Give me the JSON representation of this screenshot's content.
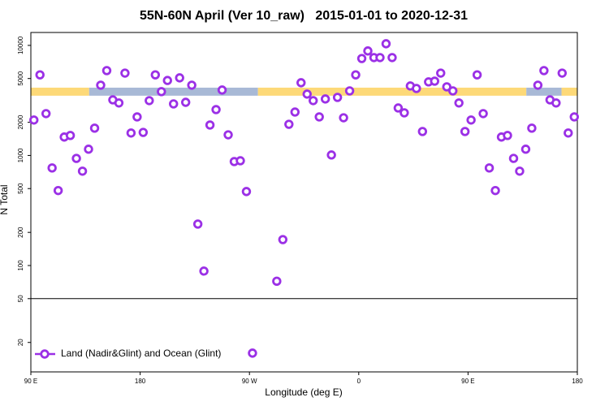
{
  "chart_data": {
    "type": "scatter",
    "title": "55N-60N April (Ver 10_raw)   2015-01-01 to 2020-12-31",
    "x_label": "Longitude (deg E)",
    "y_label": "N Total",
    "xlim": [
      90,
      540
    ],
    "xticks": [
      {
        "value": 90,
        "label": "90 E"
      },
      180,
      {
        "value": 270,
        "label": "90 W"
      },
      {
        "value": 360,
        "label": "0"
      },
      {
        "value": 450,
        "label": "90 E"
      },
      {
        "value": 540,
        "label": "180"
      }
    ],
    "ylim": [
      10.8,
      13100
    ],
    "y_log": true,
    "yticks": [
      20,
      50,
      100,
      200,
      500,
      1000,
      2000,
      5000,
      10000
    ],
    "hline": 50,
    "band_range": [
      3490,
      4130
    ],
    "band_segments": [
      {
        "from": 90,
        "to": 138,
        "color": "#fdd978"
      },
      {
        "from": 138,
        "to": 277,
        "color": "#a8b9d6"
      },
      {
        "from": 277,
        "to": 498,
        "color": "#fdd978"
      },
      {
        "from": 498,
        "to": 527,
        "color": "#a8b9d6"
      },
      {
        "from": 527,
        "to": 540,
        "color": "#fdd978"
      }
    ],
    "legend": "bottom-left",
    "series": [
      {
        "name": "Land (Nadir&Glint) and Ocean (Glint)",
        "color": "#9b30e6",
        "x": [
          92.5,
          97.5,
          102.5,
          107.5,
          112.5,
          117.5,
          122.5,
          127.5,
          132.5,
          137.5,
          142.5,
          147.5,
          152.5,
          157.5,
          162.5,
          167.5,
          172.5,
          177.5,
          182.5,
          187.5,
          192.5,
          197.5,
          202.5,
          207.5,
          212.5,
          217.5,
          222.5,
          227.5,
          232.5,
          237.5,
          242.5,
          247.5,
          252.5,
          257.5,
          262.5,
          267.5,
          272.5,
          292.5,
          297.5,
          302.5,
          307.5,
          312.5,
          317.5,
          322.5,
          327.5,
          332.5,
          337.5,
          342.5,
          347.5,
          352.5,
          357.5,
          362.5,
          367.5,
          372.5,
          377.5,
          382.5,
          387.5,
          392.5,
          397.5,
          402.5,
          407.5,
          412.5,
          417.5,
          422.5,
          427.5,
          432.5,
          437.5,
          442.5,
          447.5,
          452.5,
          457.5,
          462.5,
          467.5,
          472.5,
          477.5,
          482.5,
          487.5,
          492.5,
          497.5,
          502.5,
          507.5,
          512.5,
          517.5,
          522.5,
          527.5,
          532.5,
          537.5
        ],
        "values": [
          2100,
          5400,
          2400,
          770,
          480,
          1470,
          1520,
          940,
          720,
          1140,
          1770,
          4350,
          5900,
          3200,
          3000,
          5600,
          1600,
          2240,
          1620,
          3150,
          5400,
          3800,
          4800,
          2940,
          5070,
          3040,
          4350,
          238,
          89,
          1890,
          2610,
          3930,
          1540,
          880,
          895,
          470,
          16,
          72,
          172,
          1920,
          2480,
          4580,
          3610,
          3150,
          2240,
          3260,
          1010,
          3370,
          2200,
          3860,
          5400,
          7600,
          8900,
          7750,
          7750,
          10350,
          7750,
          2700,
          2440,
          4280,
          4060,
          1650,
          4660,
          4730,
          5600,
          4200,
          3860,
          3000,
          1650,
          2100,
          5400,
          2400,
          770,
          480,
          1470,
          1520,
          940,
          720,
          1140,
          1770,
          4350,
          5900,
          3200,
          3000,
          5600,
          1600,
          2240
        ]
      }
    ]
  }
}
